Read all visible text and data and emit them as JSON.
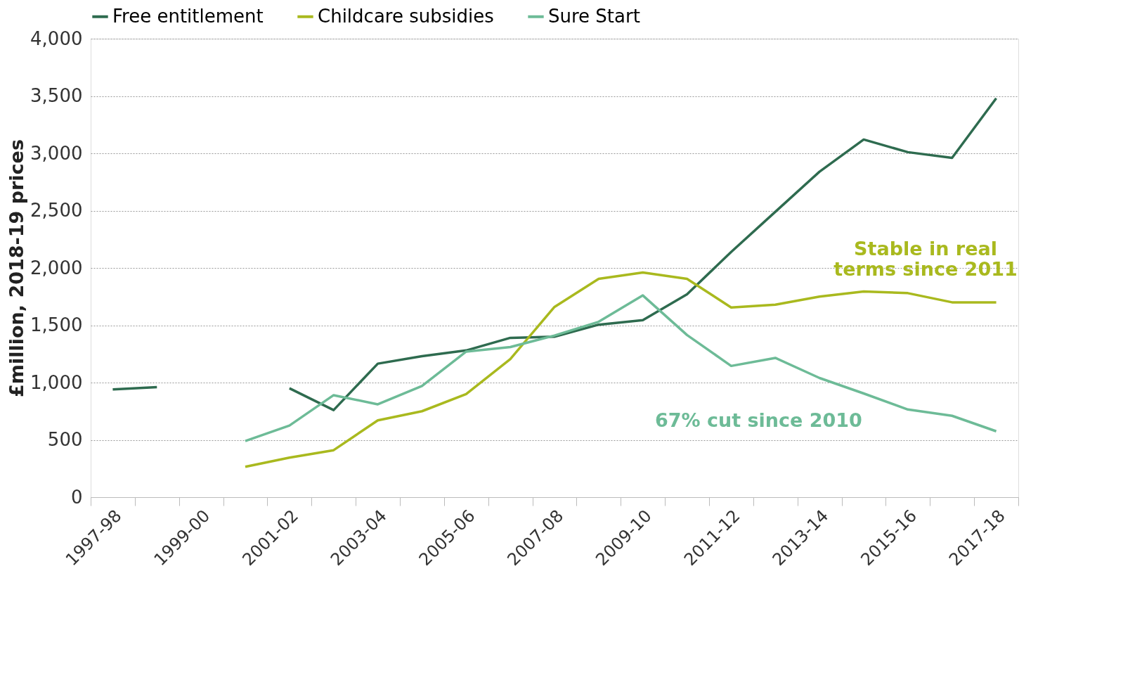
{
  "chart_data": {
    "type": "line",
    "ylabel": "£million, 2018-19  prices",
    "categories": [
      "1997-98",
      null,
      "1999-00",
      null,
      "2001-02",
      null,
      "2003-04",
      null,
      "2005-06",
      null,
      "2007-08",
      null,
      "2009-10",
      null,
      "2011-12",
      null,
      "2013-14",
      null,
      "2015-16",
      null,
      "2017-18"
    ],
    "series": [
      {
        "name": "Free entitlement",
        "color": "#2e6b4f",
        "values": [
          940,
          960,
          null,
          null,
          950,
          760,
          1165,
          1230,
          1280,
          1390,
          1400,
          1505,
          1545,
          1770,
          2140,
          2490,
          2840,
          3120,
          3010,
          2960,
          3480
        ]
      },
      {
        "name": "Childcare subsidies",
        "color": "#a9b91e",
        "values": [
          null,
          null,
          null,
          265,
          345,
          410,
          670,
          750,
          900,
          1205,
          1660,
          1905,
          1960,
          1905,
          1655,
          1680,
          1750,
          1795,
          1780,
          1700,
          1700
        ]
      },
      {
        "name": "Sure Start",
        "color": "#6dbb97",
        "values": [
          null,
          null,
          null,
          490,
          625,
          890,
          810,
          970,
          1270,
          1310,
          1410,
          1530,
          1760,
          1415,
          1145,
          1215,
          1040,
          905,
          765,
          710,
          575
        ]
      }
    ],
    "annotations": [
      "Stable in real\nterms since 2011",
      "67% cut since 2010"
    ],
    "ylim": [
      0,
      4000
    ],
    "yticks": [
      0,
      500,
      {
        "value": 1000,
        "label": "1,000"
      },
      {
        "value": 1500,
        "label": "1,500"
      },
      {
        "value": 2000,
        "label": "2,000"
      },
      {
        "value": 2500,
        "label": "2,500"
      },
      {
        "value": 3000,
        "label": "3,000"
      },
      {
        "value": 3500,
        "label": "3,500"
      },
      {
        "value": 4000,
        "label": "4,000"
      }
    ],
    "grid": "y",
    "legend": "top",
    "marker": "none",
    "line_style": "solid"
  }
}
